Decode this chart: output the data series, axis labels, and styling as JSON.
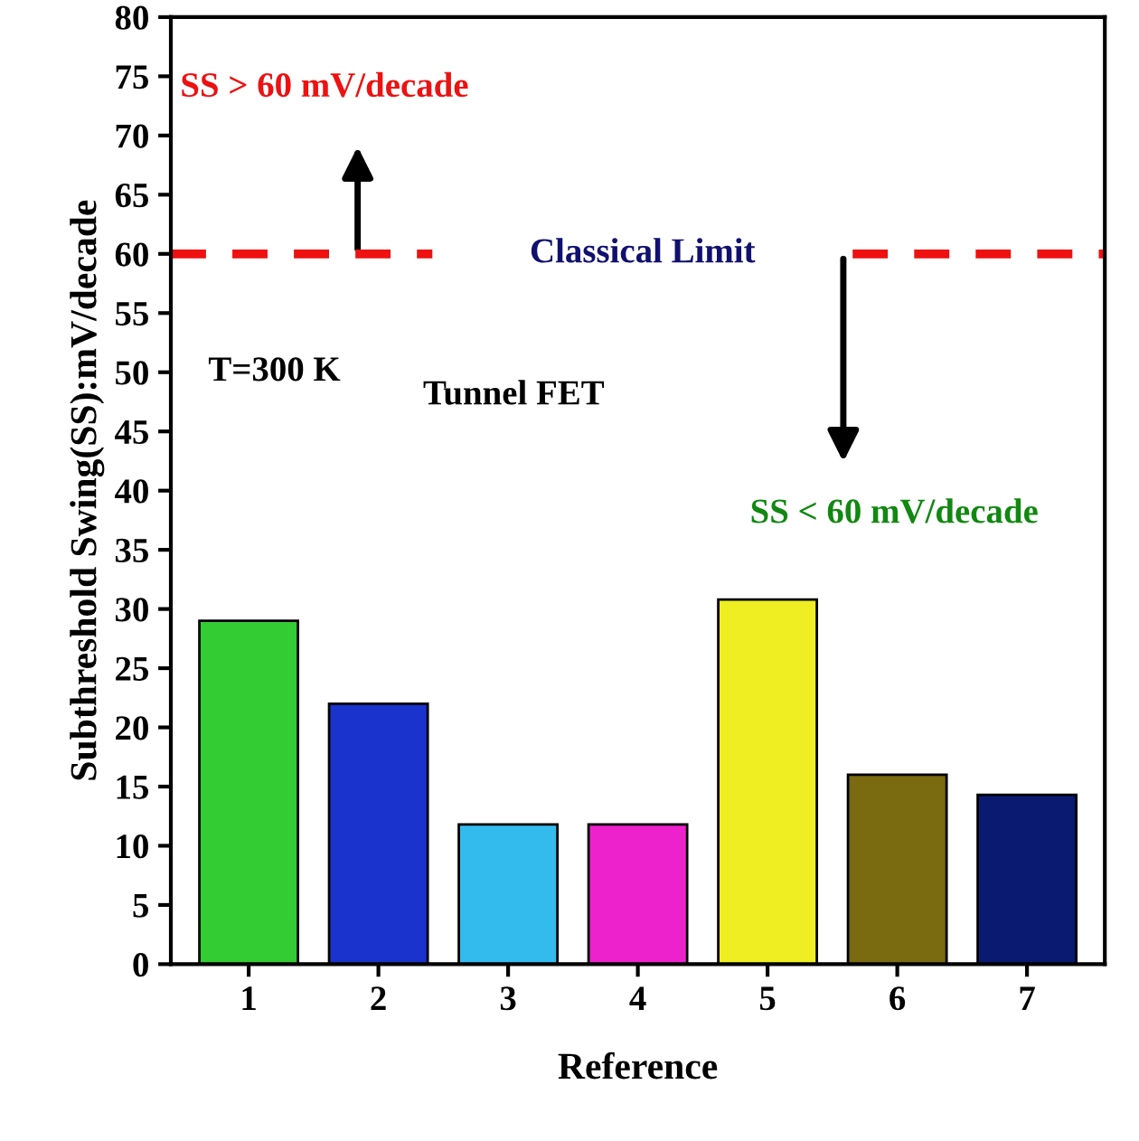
{
  "chart_data": {
    "type": "bar",
    "xlabel": "Reference",
    "ylabel": "Subthreshold Swing(SS):mV/decade",
    "categories": [
      "1",
      "2",
      "3",
      "4",
      "5",
      "6",
      "7"
    ],
    "values": [
      29,
      22,
      11.8,
      11.8,
      30.8,
      16,
      14.3
    ],
    "colors": [
      "#33cc33",
      "#1a33cc",
      "#33bbee",
      "#ee22cc",
      "#eeee22",
      "#7a6a10",
      "#0a1a70"
    ],
    "ylim": [
      0,
      80
    ],
    "yticks": [
      0,
      5,
      10,
      15,
      20,
      25,
      30,
      35,
      40,
      45,
      50,
      55,
      60,
      65,
      70,
      75,
      80
    ],
    "grid": false,
    "ref_lines": [
      {
        "axis": "y",
        "value": 60,
        "label": "Classical Limit",
        "color": "#ee1111",
        "line_style": "dashed"
      }
    ],
    "annotations": [
      "SS > 60 mV/decade",
      "T=300 K",
      "Tunnel FET",
      "SS < 60 mV/decade"
    ]
  }
}
